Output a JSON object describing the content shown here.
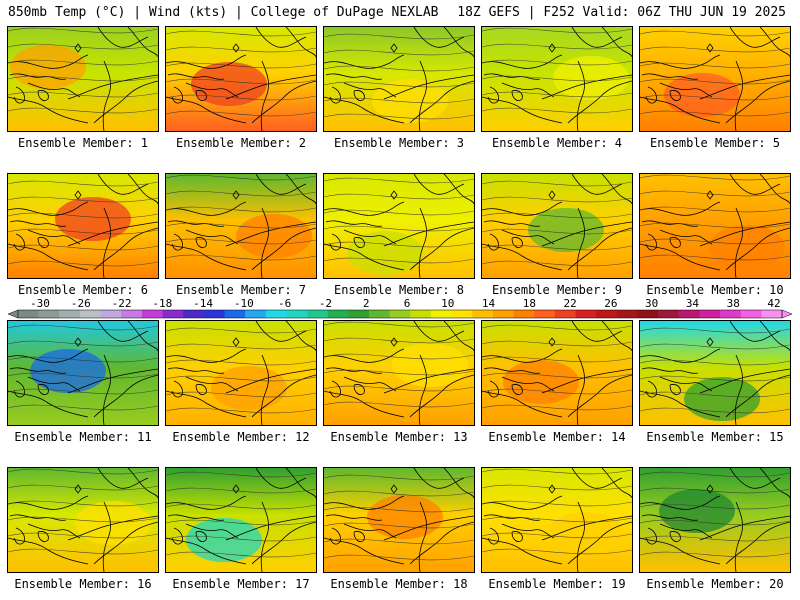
{
  "header": {
    "left": "850mb Temp (°C) | Wind (kts) | College of DuPage NEXLAB",
    "right": "18Z GEFS | F252 Valid: 06Z THU JUN 19 2025"
  },
  "colorbar": {
    "labels": [
      "-30",
      "-26",
      "-22",
      "-18",
      "-14",
      "-10",
      "-6",
      "-2",
      "2",
      "6",
      "10",
      "14",
      "18",
      "22",
      "26",
      "30",
      "34",
      "38",
      "42"
    ],
    "colors": [
      "#7a8a86",
      "#8c9a98",
      "#a3aeb0",
      "#b9c0c4",
      "#c1a8e0",
      "#c77ae6",
      "#c43cd8",
      "#8a2ad0",
      "#4c2ac8",
      "#2a34d8",
      "#1a6ae8",
      "#20a8f0",
      "#20d8e8",
      "#20d8c0",
      "#20c890",
      "#20b050",
      "#30a030",
      "#60b830",
      "#98cc20",
      "#c8e000",
      "#f0f000",
      "#ffe000",
      "#ffc000",
      "#ffa000",
      "#ff8000",
      "#ff6020",
      "#f04020",
      "#d82020",
      "#c01818",
      "#a81418",
      "#901018",
      "#a01838",
      "#b81870",
      "#d020a0",
      "#e038c8",
      "#f060e0",
      "#f890f0"
    ]
  },
  "panels": [
    {
      "label": "Ensemble Member: 1",
      "colors": {
        "base": "#c8e400",
        "top": "#9cd020",
        "bottom": "#ffc000",
        "blob": "#ffa000"
      }
    },
    {
      "label": "Ensemble Member: 2",
      "colors": {
        "base": "#ffd000",
        "top": "#d8e800",
        "bottom": "#ff6020",
        "blob": "#f04020"
      }
    },
    {
      "label": "Ensemble Member: 3",
      "colors": {
        "base": "#d8e800",
        "top": "#8cc828",
        "bottom": "#ffc000",
        "blob": "#ffe000"
      }
    },
    {
      "label": "Ensemble Member: 4",
      "colors": {
        "base": "#c8e400",
        "top": "#a8d820",
        "bottom": "#ffd000",
        "blob": "#f0f000"
      }
    },
    {
      "label": "Ensemble Member: 5",
      "colors": {
        "base": "#ffb000",
        "top": "#ffd000",
        "bottom": "#ff8000",
        "blob": "#ff6020"
      }
    },
    {
      "label": "Ensemble Member: 6",
      "colors": {
        "base": "#ffd000",
        "top": "#d8e800",
        "bottom": "#ff8000",
        "blob": "#f04020"
      }
    },
    {
      "label": "Ensemble Member: 7",
      "colors": {
        "base": "#ffc000",
        "top": "#60b830",
        "bottom": "#ff9000",
        "blob": "#ff8000"
      }
    },
    {
      "label": "Ensemble Member: 8",
      "colors": {
        "base": "#f0f000",
        "top": "#d8e800",
        "bottom": "#ffc000",
        "blob": "#c8e000"
      }
    },
    {
      "label": "Ensemble Member: 9",
      "colors": {
        "base": "#ffd000",
        "top": "#c8e000",
        "bottom": "#ffa000",
        "blob": "#60b830"
      }
    },
    {
      "label": "Ensemble Member: 10",
      "colors": {
        "base": "#ffa000",
        "top": "#ffc000",
        "bottom": "#ff8000",
        "blob": "#ff8000"
      }
    },
    {
      "label": "Ensemble Member: 11",
      "colors": {
        "base": "#60b830",
        "top": "#20c8e0",
        "bottom": "#98cc20",
        "blob": "#1a6ae8"
      }
    },
    {
      "label": "Ensemble Member: 12",
      "colors": {
        "base": "#ffd000",
        "top": "#c8e000",
        "bottom": "#ffb000",
        "blob": "#ffa000"
      }
    },
    {
      "label": "Ensemble Member: 13",
      "colors": {
        "base": "#ffd000",
        "top": "#c8e000",
        "bottom": "#ffa000",
        "blob": "#ffe000"
      }
    },
    {
      "label": "Ensemble Member: 14",
      "colors": {
        "base": "#ffc000",
        "top": "#c8e000",
        "bottom": "#ffa000",
        "blob": "#ff8000"
      }
    },
    {
      "label": "Ensemble Member: 15",
      "colors": {
        "base": "#c8e000",
        "top": "#20d8e8",
        "bottom": "#ffc000",
        "blob": "#30a030"
      }
    },
    {
      "label": "Ensemble Member: 16",
      "colors": {
        "base": "#d8e800",
        "top": "#60b830",
        "bottom": "#ffc000",
        "blob": "#ffe000"
      }
    },
    {
      "label": "Ensemble Member: 17",
      "colors": {
        "base": "#c8e000",
        "top": "#30a030",
        "bottom": "#ffd000",
        "blob": "#20d8c0"
      }
    },
    {
      "label": "Ensemble Member: 18",
      "colors": {
        "base": "#ffd000",
        "top": "#60b830",
        "bottom": "#ffa000",
        "blob": "#ff8000"
      }
    },
    {
      "label": "Ensemble Member: 19",
      "colors": {
        "base": "#ffe000",
        "top": "#d8e800",
        "bottom": "#ffc000",
        "blob": "#ffd000"
      }
    },
    {
      "label": "Ensemble Member: 20",
      "colors": {
        "base": "#98cc20",
        "top": "#30a030",
        "bottom": "#ffc000",
        "blob": "#208830"
      }
    }
  ]
}
